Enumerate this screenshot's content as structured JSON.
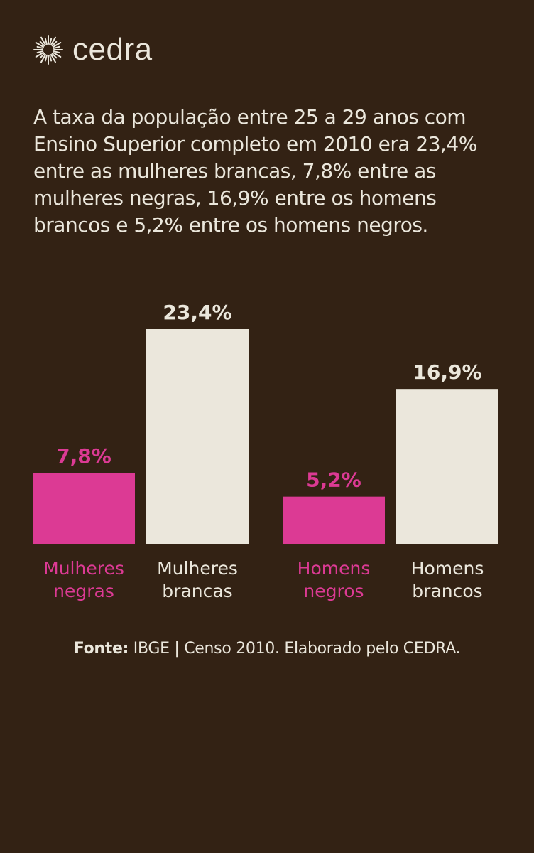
{
  "brand": {
    "name": "cedra",
    "logo_icon": "sunburst-icon"
  },
  "description": "A taxa da população entre 25 a 29 anos com Ensino Superior completo em 2010 era 23,4% entre as mulheres brancas, 7,8% entre as mulheres negras, 16,9% entre os homens brancos e 5,2% entre os homens negros.",
  "source": {
    "label": "Fonte:",
    "text": "IBGE | Censo 2010. Elaborado pelo CEDRA."
  },
  "colors": {
    "background": "#332214",
    "light": "#ebe7dc",
    "accent": "#dc3a94"
  },
  "chart_data": {
    "type": "bar",
    "categories": [
      "Mulheres negras",
      "Mulheres brancas",
      "Homens negros",
      "Homens brancos"
    ],
    "category_lines": [
      [
        "Mulheres",
        "negras"
      ],
      [
        "Mulheres",
        "brancas"
      ],
      [
        "Homens",
        "negros"
      ],
      [
        "Homens",
        "brancos"
      ]
    ],
    "values": [
      7.8,
      23.4,
      5.2,
      16.9
    ],
    "value_labels": [
      "7,8%",
      "23,4%",
      "5,2%",
      "16,9%"
    ],
    "bar_colors": [
      "#dc3a94",
      "#ebe7dc",
      "#dc3a94",
      "#ebe7dc"
    ],
    "ylim": [
      0,
      23.4
    ],
    "grid": false,
    "legend": false
  }
}
